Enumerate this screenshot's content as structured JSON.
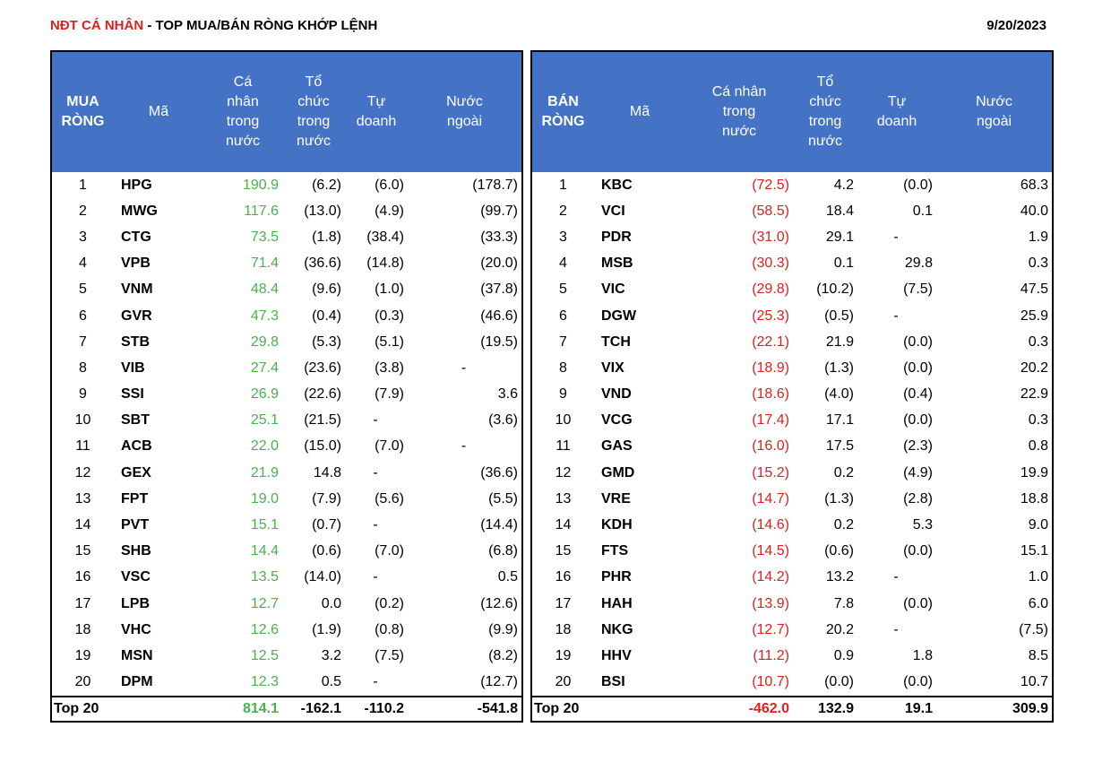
{
  "title_red": "NĐT CÁ NHÂN",
  "title_rest": " - TOP MUA/BÁN RÒNG KHỚP LỆNH",
  "date": "9/20/2023",
  "buy": {
    "headers": [
      [
        "MUA",
        "RÒNG"
      ],
      [
        "Mã"
      ],
      [
        "Cá",
        "nhân",
        "trong",
        "nước"
      ],
      [
        "Tổ",
        "chức",
        "trong",
        "nước"
      ],
      [
        "Tự",
        "doanh"
      ],
      [
        "Nước",
        "ngoài"
      ]
    ],
    "rows": [
      [
        "1",
        "HPG",
        "190.9",
        "(6.2)",
        "(6.0)",
        "(178.7)"
      ],
      [
        "2",
        "MWG",
        "117.6",
        "(13.0)",
        "(4.9)",
        "(99.7)"
      ],
      [
        "3",
        "CTG",
        "73.5",
        "(1.8)",
        "(38.4)",
        "(33.3)"
      ],
      [
        "4",
        "VPB",
        "71.4",
        "(36.6)",
        "(14.8)",
        "(20.0)"
      ],
      [
        "5",
        "VNM",
        "48.4",
        "(9.6)",
        "(1.0)",
        "(37.8)"
      ],
      [
        "6",
        "GVR",
        "47.3",
        "(0.4)",
        "(0.3)",
        "(46.6)"
      ],
      [
        "7",
        "STB",
        "29.8",
        "(5.3)",
        "(5.1)",
        "(19.5)"
      ],
      [
        "8",
        "VIB",
        "27.4",
        "(23.6)",
        "(3.8)",
        "-"
      ],
      [
        "9",
        "SSI",
        "26.9",
        "(22.6)",
        "(7.9)",
        "3.6"
      ],
      [
        "10",
        "SBT",
        "25.1",
        "(21.5)",
        "-",
        "(3.6)"
      ],
      [
        "11",
        "ACB",
        "22.0",
        "(15.0)",
        "(7.0)",
        "-"
      ],
      [
        "12",
        "GEX",
        "21.9",
        "14.8",
        "-",
        "(36.6)"
      ],
      [
        "13",
        "FPT",
        "19.0",
        "(7.9)",
        "(5.6)",
        "(5.5)"
      ],
      [
        "14",
        "PVT",
        "15.1",
        "(0.7)",
        "-",
        "(14.4)"
      ],
      [
        "15",
        "SHB",
        "14.4",
        "(0.6)",
        "(7.0)",
        "(6.8)"
      ],
      [
        "16",
        "VSC",
        "13.5",
        "(14.0)",
        "-",
        "0.5"
      ],
      [
        "17",
        "LPB",
        "12.7",
        "0.0",
        "(0.2)",
        "(12.6)"
      ],
      [
        "18",
        "VHC",
        "12.6",
        "(1.9)",
        "(0.8)",
        "(9.9)"
      ],
      [
        "19",
        "MSN",
        "12.5",
        "3.2",
        "(7.5)",
        "(8.2)"
      ],
      [
        "20",
        "DPM",
        "12.3",
        "0.5",
        "-",
        "(12.7)"
      ]
    ],
    "total": {
      "label": "Top 20",
      "values": [
        "814.1",
        "-162.1",
        "-110.2",
        "-541.8"
      ]
    }
  },
  "sell": {
    "headers": [
      [
        "BÁN",
        "RÒNG"
      ],
      [
        "Mã"
      ],
      [
        "Cá nhân",
        "trong",
        "nước"
      ],
      [
        "Tổ",
        "chức",
        "trong",
        "nước"
      ],
      [
        "Tự",
        "doanh"
      ],
      [
        "Nước",
        "ngoài"
      ]
    ],
    "rows": [
      [
        "1",
        "KBC",
        "(72.5)",
        "4.2",
        "(0.0)",
        "68.3"
      ],
      [
        "2",
        "VCI",
        "(58.5)",
        "18.4",
        "0.1",
        "40.0"
      ],
      [
        "3",
        "PDR",
        "(31.0)",
        "29.1",
        "-",
        "1.9"
      ],
      [
        "4",
        "MSB",
        "(30.3)",
        "0.1",
        "29.8",
        "0.3"
      ],
      [
        "5",
        "VIC",
        "(29.8)",
        "(10.2)",
        "(7.5)",
        "47.5"
      ],
      [
        "6",
        "DGW",
        "(25.3)",
        "(0.5)",
        "-",
        "25.9"
      ],
      [
        "7",
        "TCH",
        "(22.1)",
        "21.9",
        "(0.0)",
        "0.3"
      ],
      [
        "8",
        "VIX",
        "(18.9)",
        "(1.3)",
        "(0.0)",
        "20.2"
      ],
      [
        "9",
        "VND",
        "(18.6)",
        "(4.0)",
        "(0.4)",
        "22.9"
      ],
      [
        "10",
        "VCG",
        "(17.4)",
        "17.1",
        "(0.0)",
        "0.3"
      ],
      [
        "11",
        "GAS",
        "(16.0)",
        "17.5",
        "(2.3)",
        "0.8"
      ],
      [
        "12",
        "GMD",
        "(15.2)",
        "0.2",
        "(4.9)",
        "19.9"
      ],
      [
        "13",
        "VRE",
        "(14.7)",
        "(1.3)",
        "(2.8)",
        "18.8"
      ],
      [
        "14",
        "KDH",
        "(14.6)",
        "0.2",
        "5.3",
        "9.0"
      ],
      [
        "15",
        "FTS",
        "(14.5)",
        "(0.6)",
        "(0.0)",
        "15.1"
      ],
      [
        "16",
        "PHR",
        "(14.2)",
        "13.2",
        "-",
        "1.0"
      ],
      [
        "17",
        "HAH",
        "(13.9)",
        "7.8",
        "(0.0)",
        "6.0"
      ],
      [
        "18",
        "NKG",
        "(12.7)",
        "20.2",
        "-",
        "(7.5)"
      ],
      [
        "19",
        "HHV",
        "(11.2)",
        "0.9",
        "1.8",
        "8.5"
      ],
      [
        "20",
        "BSI",
        "(10.7)",
        "(0.0)",
        "(0.0)",
        "10.7"
      ]
    ],
    "total": {
      "label": "Top 20",
      "values": [
        "-462.0",
        "132.9",
        "19.1",
        "309.9"
      ]
    }
  }
}
